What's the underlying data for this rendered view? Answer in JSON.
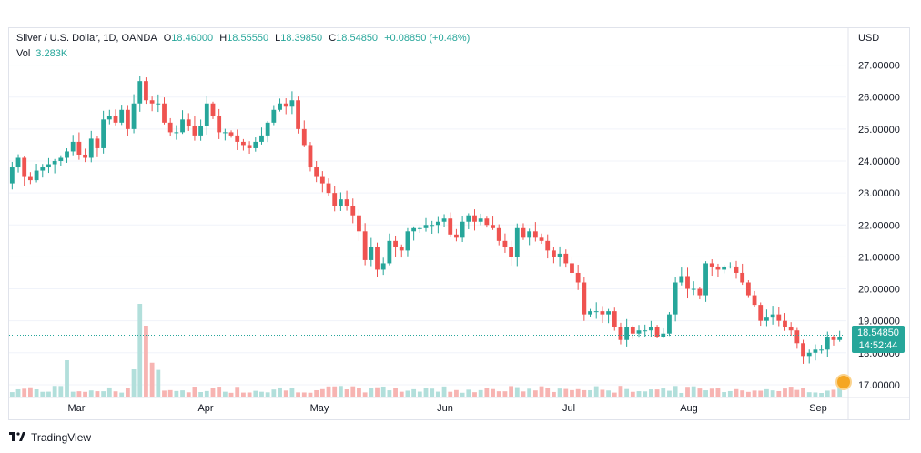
{
  "legend": {
    "symbol": "Silver / U.S. Dollar, 1D, OANDA",
    "open_label": "O",
    "open": "18.46000",
    "high_label": "H",
    "high": "18.55550",
    "low_label": "L",
    "low": "18.39850",
    "close_label": "C",
    "close": "18.54850",
    "change": "+0.08850 (+0.48%)",
    "vol_label": "Vol",
    "vol": "3.283K"
  },
  "axis": {
    "currency": "USD",
    "price_ticks": [
      "27.00000",
      "26.00000",
      "25.00000",
      "24.00000",
      "23.00000",
      "22.00000",
      "21.00000",
      "20.00000",
      "19.00000",
      "18.00000",
      "17.00000"
    ],
    "months": [
      "Mar",
      "Apr",
      "May",
      "Jun",
      "Jul",
      "Aug",
      "Sep"
    ]
  },
  "price_tag": {
    "price": "18.54850",
    "countdown": "14:52:44"
  },
  "branding": {
    "name": "TradingView"
  },
  "colors": {
    "up": "#26a69a",
    "down": "#ef5350",
    "up_vol": "#b2dfdb",
    "down_vol": "#f7b4b2"
  },
  "chart_data": {
    "type": "candlestick",
    "ylim": [
      16.6,
      27.7
    ],
    "closes": [
      23.8,
      24.1,
      23.5,
      23.4,
      23.7,
      23.8,
      23.9,
      24.0,
      24.1,
      24.3,
      24.6,
      24.2,
      24.1,
      24.7,
      24.4,
      25.3,
      25.4,
      25.2,
      25.6,
      25.0,
      25.8,
      26.5,
      25.9,
      25.8,
      25.8,
      25.2,
      24.9,
      24.9,
      25.3,
      25.1,
      24.8,
      25.1,
      25.8,
      25.4,
      24.9,
      24.9,
      24.8,
      24.6,
      24.5,
      24.4,
      24.6,
      24.8,
      25.2,
      25.6,
      25.8,
      25.7,
      25.9,
      25.0,
      24.5,
      23.8,
      23.5,
      23.3,
      23.0,
      22.6,
      22.8,
      22.6,
      22.3,
      21.8,
      20.9,
      21.3,
      20.6,
      20.8,
      21.5,
      21.3,
      21.2,
      21.8,
      21.9,
      21.9,
      22.0,
      22.0,
      22.1,
      22.2,
      21.7,
      21.6,
      22.1,
      22.3,
      22.1,
      22.2,
      22.0,
      21.9,
      21.5,
      21.3,
      21.0,
      21.9,
      21.6,
      21.8,
      21.6,
      21.5,
      21.2,
      21.0,
      21.1,
      20.8,
      20.5,
      20.2,
      19.2,
      19.3,
      19.3,
      19.2,
      19.3,
      18.8,
      18.4,
      18.8,
      18.6,
      18.7,
      18.7,
      18.8,
      18.5,
      18.6,
      19.2,
      20.2,
      20.4,
      20.0,
      20.0,
      19.8,
      20.8,
      20.7,
      20.6,
      20.7,
      20.7,
      20.5,
      20.2,
      19.8,
      19.5,
      19.0,
      19.1,
      19.2,
      19.0,
      18.8,
      18.7,
      18.3,
      17.9,
      18.0,
      18.1,
      18.1,
      18.5,
      18.4,
      18.5
    ],
    "volume_scale": "relative",
    "months": [
      "Mar",
      "Apr",
      "May",
      "Jun",
      "Jul",
      "Aug",
      "Sep"
    ]
  }
}
